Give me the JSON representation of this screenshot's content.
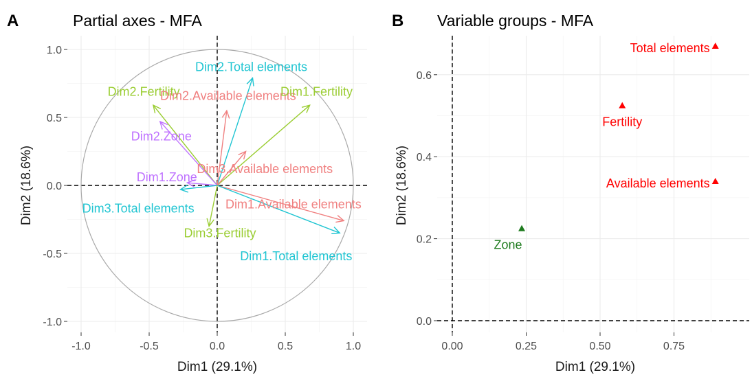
{
  "colors": {
    "Fertility": "#9acd32",
    "Available elements": "#f08080",
    "Total elements": "#20c5d2",
    "Zone": "#bf72ff",
    "red": "#ff0000",
    "green": "#1e7b1e",
    "circle": "#a9a9a9"
  },
  "chart_data": [
    {
      "type": "scatter",
      "tag": "A",
      "title": "Partial axes - MFA",
      "xlabel": "Dim1 (29.1%)",
      "ylabel": "Dim2 (18.6%)",
      "xlim": [
        -1.0,
        1.0
      ],
      "ylim": [
        -1.0,
        1.0
      ],
      "xticks": [
        "-1.0",
        "-0.5",
        "0.0",
        "0.5",
        "1.0"
      ],
      "yticks": [
        "-1.0",
        "-0.5",
        "0.0",
        "0.5",
        "1.0"
      ],
      "grid": true,
      "unit_circle": true,
      "vectors": [
        {
          "label": "Dim2.Total elements",
          "group": "Total elements",
          "x": 0.26,
          "y": 0.79,
          "lx": 0.25,
          "ly": 0.87
        },
        {
          "label": "Dim2.Fertility",
          "group": "Fertility",
          "x": -0.47,
          "y": 0.59,
          "lx": -0.54,
          "ly": 0.69
        },
        {
          "label": "Dim2.Available elements",
          "group": "Available elements",
          "x": 0.07,
          "y": 0.55,
          "lx": 0.08,
          "ly": 0.66
        },
        {
          "label": "Dim1.Fertility",
          "group": "Fertility",
          "x": 0.68,
          "y": 0.59,
          "lx": 0.73,
          "ly": 0.69
        },
        {
          "label": "Dim2.Zone",
          "group": "Zone",
          "x": -0.42,
          "y": 0.47,
          "lx": -0.41,
          "ly": 0.36
        },
        {
          "label": "Dim3.Available elements",
          "group": "Available elements",
          "x": 0.21,
          "y": 0.25,
          "lx": 0.35,
          "ly": 0.12,
          "text": "Dim3.Available elements"
        },
        {
          "label": "Dim1.Zone",
          "group": "Zone",
          "x": -0.22,
          "y": 0.02,
          "lx": -0.37,
          "ly": 0.06
        },
        {
          "label": "Dim3.Total elements",
          "group": "Total elements",
          "x": -0.27,
          "y": -0.03,
          "lx": -0.58,
          "ly": -0.17
        },
        {
          "label": "Dim1.Available elements",
          "group": "Available elements",
          "x": 0.93,
          "y": -0.26,
          "lx": 0.56,
          "ly": -0.14
        },
        {
          "label": "Dim1.Total elements",
          "group": "Total elements",
          "x": 0.9,
          "y": -0.35,
          "lx": 0.58,
          "ly": -0.52
        },
        {
          "label": "Dim3.Fertility",
          "group": "Fertility",
          "x": -0.06,
          "y": -0.3,
          "lx": 0.02,
          "ly": -0.35
        }
      ]
    },
    {
      "type": "scatter",
      "tag": "B",
      "title": "Variable groups - MFA",
      "xlabel": "Dim1 (29.1%)",
      "ylabel": "Dim2 (18.6%)",
      "xlim": [
        -0.04,
        0.9
      ],
      "ylim": [
        -0.02,
        0.68
      ],
      "xticks": [
        0.0,
        0.25,
        0.5,
        0.75
      ],
      "xtick_labels": [
        "0.00",
        "0.25",
        "0.50",
        "0.75"
      ],
      "yticks": [
        0.0,
        0.2,
        0.4,
        0.6
      ],
      "ytick_labels": [
        "0.0",
        "0.2",
        "0.4",
        "0.6"
      ],
      "grid": true,
      "points": [
        {
          "label": "Total elements",
          "x": 0.89,
          "y": 0.67,
          "color": "red"
        },
        {
          "label": "Fertility",
          "x": 0.575,
          "y": 0.525,
          "color": "red"
        },
        {
          "label": "Available elements",
          "x": 0.89,
          "y": 0.34,
          "color": "red"
        },
        {
          "label": "Zone",
          "x": 0.235,
          "y": 0.225,
          "color": "green"
        }
      ]
    }
  ]
}
